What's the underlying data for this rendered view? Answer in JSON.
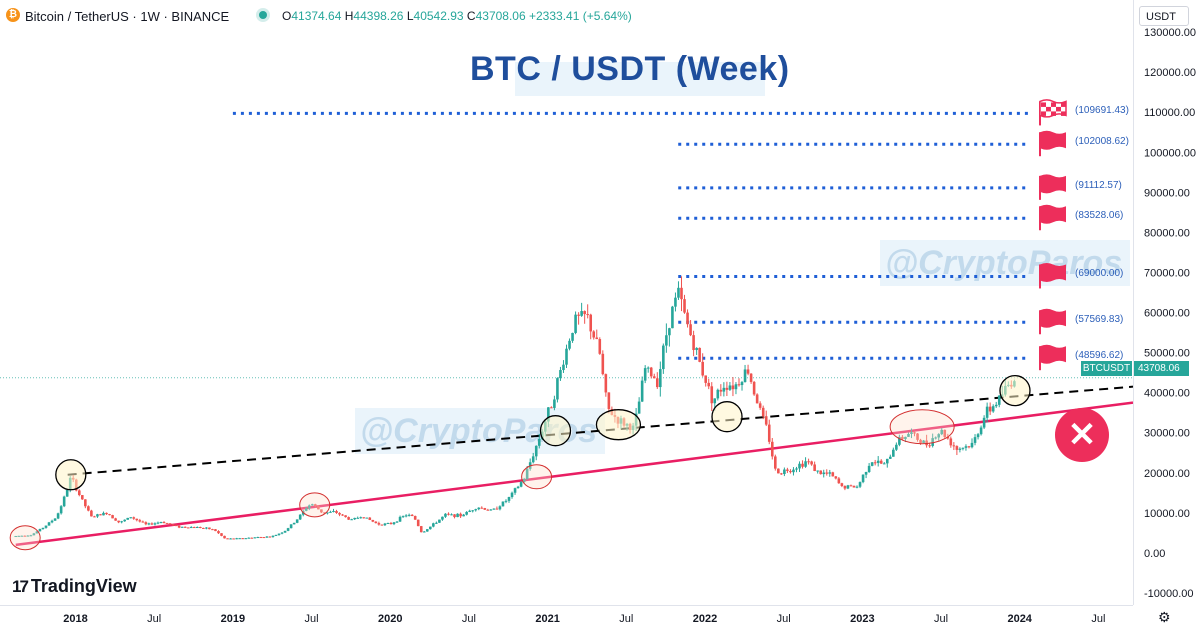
{
  "header": {
    "symbol_icon": "bitcoin-icon",
    "symbol": "Bitcoin / TetherUS · 1W · BINANCE",
    "ohlc": [
      {
        "k": "O",
        "v": "41374.64"
      },
      {
        "k": "H",
        "v": "44398.26"
      },
      {
        "k": "L",
        "v": "40542.93"
      },
      {
        "k": "C",
        "v": "43708.06"
      }
    ],
    "change": "+2333.41 (+5.64%)"
  },
  "currency": "USDT",
  "title": "BTC / USDT (Week)",
  "watermark": "@CryptoParos",
  "logo": "TradingView",
  "last": {
    "label": "BTCUSDT",
    "price": "43708.06"
  },
  "colors": {
    "up": "#26a69a",
    "down": "#ef5350",
    "support": "#e91e63",
    "levels": "#1f5fd6",
    "title": "#1f4e9c",
    "flag": "#ed2e5b"
  },
  "chart_data": {
    "type": "candlestick",
    "title": "BTC / USDT (Week)",
    "y_ticks": [
      "130000.00",
      "120000.00",
      "110000.00",
      "100000.00",
      "90000.00",
      "80000.00",
      "70000.00",
      "60000.00",
      "50000.00",
      "40000.00",
      "30000.00",
      "20000.00",
      "10000.00",
      "0.00",
      "-10000.00"
    ],
    "ylim": [
      -13000,
      138000
    ],
    "x_ticks": [
      {
        "label": "2018",
        "t": 2018.0,
        "bold": true
      },
      {
        "label": "Jul",
        "t": 2018.5
      },
      {
        "label": "2019",
        "t": 2019.0,
        "bold": true
      },
      {
        "label": "Jul",
        "t": 2019.5
      },
      {
        "label": "2020",
        "t": 2020.0,
        "bold": true
      },
      {
        "label": "Jul",
        "t": 2020.5
      },
      {
        "label": "2021",
        "t": 2021.0,
        "bold": true
      },
      {
        "label": "Jul",
        "t": 2021.5
      },
      {
        "label": "2022",
        "t": 2022.0,
        "bold": true
      },
      {
        "label": "Jul",
        "t": 2022.5
      },
      {
        "label": "2023",
        "t": 2023.0,
        "bold": true
      },
      {
        "label": "Jul",
        "t": 2023.5
      },
      {
        "label": "2024",
        "t": 2024.0,
        "bold": true
      },
      {
        "label": "Jul",
        "t": 2024.5
      }
    ],
    "xlim": [
      2017.52,
      2024.72
    ],
    "price_path": [
      [
        2017.62,
        4200
      ],
      [
        2017.72,
        4500
      ],
      [
        2017.8,
        6500
      ],
      [
        2017.88,
        9000
      ],
      [
        2017.94,
        15000
      ],
      [
        2017.97,
        19000
      ],
      [
        2018.03,
        14000
      ],
      [
        2018.1,
        9000
      ],
      [
        2018.2,
        10000
      ],
      [
        2018.28,
        7500
      ],
      [
        2018.35,
        9000
      ],
      [
        2018.45,
        7000
      ],
      [
        2018.55,
        7800
      ],
      [
        2018.65,
        6500
      ],
      [
        2018.78,
        6400
      ],
      [
        2018.88,
        5800
      ],
      [
        2018.95,
        3500
      ],
      [
        2019.05,
        3600
      ],
      [
        2019.15,
        3900
      ],
      [
        2019.25,
        4100
      ],
      [
        2019.33,
        5500
      ],
      [
        2019.4,
        8000
      ],
      [
        2019.47,
        11500
      ],
      [
        2019.5,
        12300
      ],
      [
        2019.57,
        10000
      ],
      [
        2019.65,
        10200
      ],
      [
        2019.75,
        8200
      ],
      [
        2019.82,
        9200
      ],
      [
        2019.92,
        7200
      ],
      [
        2020.0,
        7200
      ],
      [
        2020.1,
        9500
      ],
      [
        2020.15,
        9000
      ],
      [
        2020.2,
        5000
      ],
      [
        2020.27,
        7000
      ],
      [
        2020.35,
        9500
      ],
      [
        2020.45,
        9300
      ],
      [
        2020.55,
        11500
      ],
      [
        2020.65,
        10500
      ],
      [
        2020.75,
        13500
      ],
      [
        2020.85,
        18500
      ],
      [
        2020.95,
        29000
      ],
      [
        2021.03,
        38000
      ],
      [
        2021.1,
        48000
      ],
      [
        2021.17,
        58000
      ],
      [
        2021.25,
        59000
      ],
      [
        2021.33,
        50000
      ],
      [
        2021.38,
        36000
      ],
      [
        2021.45,
        33000
      ],
      [
        2021.55,
        31000
      ],
      [
        2021.62,
        46000
      ],
      [
        2021.7,
        43000
      ],
      [
        2021.77,
        58000
      ],
      [
        2021.83,
        65000
      ],
      [
        2021.88,
        58000
      ],
      [
        2021.97,
        47000
      ],
      [
        2022.05,
        38000
      ],
      [
        2022.12,
        42000
      ],
      [
        2022.2,
        42000
      ],
      [
        2022.27,
        46000
      ],
      [
        2022.33,
        38000
      ],
      [
        2022.4,
        30000
      ],
      [
        2022.45,
        20000
      ],
      [
        2022.55,
        21000
      ],
      [
        2022.65,
        23000
      ],
      [
        2022.72,
        20000
      ],
      [
        2022.8,
        19500
      ],
      [
        2022.87,
        16500
      ],
      [
        2022.97,
        16500
      ],
      [
        2023.05,
        23000
      ],
      [
        2023.15,
        22000
      ],
      [
        2023.22,
        28000
      ],
      [
        2023.3,
        30000
      ],
      [
        2023.4,
        27000
      ],
      [
        2023.5,
        30500
      ],
      [
        2023.6,
        26000
      ],
      [
        2023.7,
        27000
      ],
      [
        2023.78,
        34500
      ],
      [
        2023.85,
        37500
      ],
      [
        2023.93,
        42000
      ],
      [
        2023.97,
        43708
      ]
    ],
    "resistance_levels": [
      {
        "value": 109691.43,
        "label": "(109691.43)",
        "start_t": 2019.0,
        "flag": "checkered"
      },
      {
        "value": 102008.62,
        "label": "(102008.62)",
        "start_t": 2021.83,
        "flag": "solid"
      },
      {
        "value": 91112.57,
        "label": "(91112.57)",
        "start_t": 2021.83,
        "flag": "solid"
      },
      {
        "value": 83528.06,
        "label": "(83528.06)",
        "start_t": 2021.83,
        "flag": "solid"
      },
      {
        "value": 69000.0,
        "label": "(69000.00)",
        "start_t": 2021.83,
        "flag": "solid"
      },
      {
        "value": 57569.83,
        "label": "(57569.83)",
        "start_t": 2021.83,
        "flag": "solid"
      },
      {
        "value": 48596.62,
        "label": "(48596.62)",
        "start_t": 2021.83,
        "flag": "solid"
      }
    ],
    "support_line": {
      "from": [
        2017.62,
        2000
      ],
      "to": [
        2024.72,
        37500
      ]
    },
    "trend_line": {
      "from": [
        2017.95,
        19500
      ],
      "to": [
        2024.72,
        41500
      ]
    },
    "circle_markers": [
      {
        "t": 2017.68,
        "p": 3800,
        "style": "red"
      },
      {
        "t": 2017.97,
        "p": 19500,
        "style": "black"
      },
      {
        "t": 2019.52,
        "p": 12000,
        "style": "red"
      },
      {
        "t": 2020.93,
        "p": 19000,
        "style": "red"
      },
      {
        "t": 2021.05,
        "p": 30500,
        "style": "black"
      },
      {
        "t": 2021.45,
        "p": 32000,
        "style": "black"
      },
      {
        "t": 2022.14,
        "p": 34000,
        "style": "black"
      },
      {
        "t": 2023.38,
        "p": 31500,
        "style": "red"
      },
      {
        "t": 2023.97,
        "p": 40500,
        "style": "black"
      }
    ]
  }
}
